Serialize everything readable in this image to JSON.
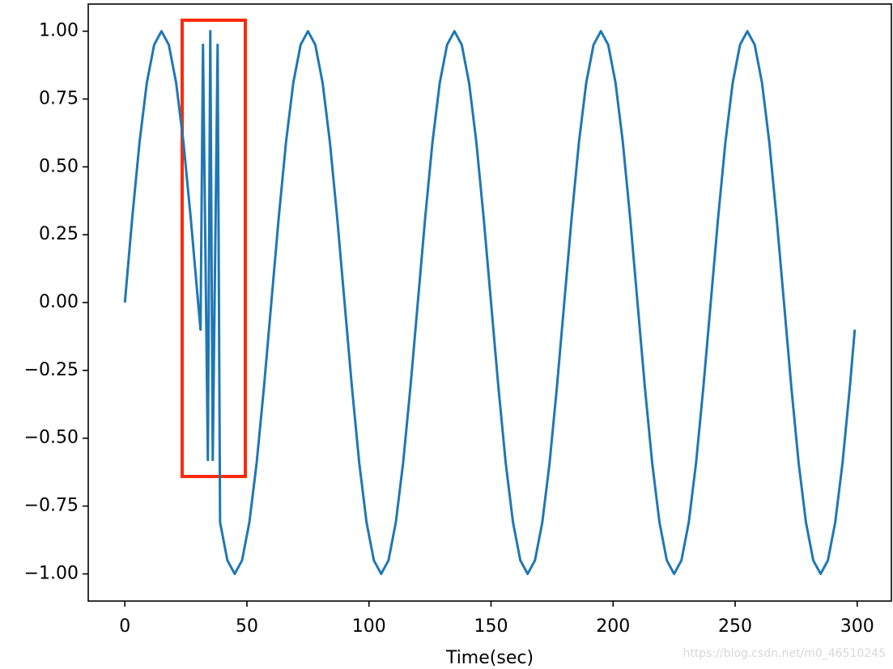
{
  "chart_data": {
    "type": "line",
    "x_label": "Time(sec)",
    "watermark": "https://blog.csdn.net/m0_46510245",
    "x": [
      0,
      3,
      6,
      9,
      12,
      15,
      18,
      21,
      24,
      27,
      30,
      31,
      32,
      34,
      35,
      36,
      38,
      39,
      42,
      45,
      48,
      51,
      54,
      57,
      60,
      63,
      66,
      69,
      72,
      75,
      78,
      81,
      84,
      87,
      90,
      93,
      96,
      99,
      102,
      105,
      108,
      111,
      114,
      117,
      120,
      123,
      126,
      129,
      132,
      135,
      138,
      141,
      144,
      147,
      150,
      153,
      156,
      159,
      162,
      165,
      168,
      171,
      174,
      177,
      180,
      183,
      186,
      189,
      192,
      195,
      198,
      201,
      204,
      207,
      210,
      213,
      216,
      219,
      222,
      225,
      228,
      231,
      234,
      237,
      240,
      243,
      246,
      249,
      252,
      255,
      258,
      261,
      264,
      267,
      270,
      273,
      276,
      279,
      282,
      285,
      288,
      291,
      294,
      297,
      299
    ],
    "series": [
      {
        "color": "#1f77b4",
        "values": [
          0,
          0.31,
          0.59,
          0.81,
          0.95,
          1,
          0.95,
          0.81,
          0.59,
          0.31,
          0,
          -0.1,
          0.95,
          -0.58,
          1,
          -0.58,
          0.95,
          -0.81,
          -0.95,
          -1,
          -0.95,
          -0.81,
          -0.59,
          -0.31,
          0,
          0.31,
          0.59,
          0.81,
          0.95,
          1,
          0.95,
          0.81,
          0.59,
          0.31,
          0,
          -0.31,
          -0.59,
          -0.81,
          -0.95,
          -1,
          -0.95,
          -0.81,
          -0.59,
          -0.31,
          0,
          0.31,
          0.59,
          0.81,
          0.95,
          1,
          0.95,
          0.81,
          0.59,
          0.31,
          0,
          -0.31,
          -0.59,
          -0.81,
          -0.95,
          -1,
          -0.95,
          -0.81,
          -0.59,
          -0.31,
          0,
          0.31,
          0.59,
          0.81,
          0.95,
          1,
          0.95,
          0.81,
          0.59,
          0.31,
          0,
          -0.31,
          -0.59,
          -0.81,
          -0.95,
          -1,
          -0.95,
          -0.81,
          -0.59,
          -0.31,
          0,
          0.31,
          0.59,
          0.81,
          0.95,
          1,
          0.95,
          0.81,
          0.59,
          0.31,
          0,
          -0.31,
          -0.59,
          -0.81,
          -0.95,
          -1,
          -0.95,
          -0.81,
          -0.59,
          -0.31,
          -0.1
        ]
      }
    ],
    "xlim": [
      -15,
      314
    ],
    "ylim": [
      -1.1,
      1.1
    ],
    "xticks": [
      0,
      50,
      100,
      150,
      200,
      250,
      300
    ],
    "yticks": [
      {
        "value": -1,
        "label": "−1.00"
      },
      {
        "value": -0.75,
        "label": "−0.75"
      },
      {
        "value": -0.5,
        "label": "−0.50"
      },
      {
        "value": -0.25,
        "label": "−0.25"
      },
      {
        "value": 0,
        "label": "0.00"
      },
      {
        "value": 0.25,
        "label": "0.25"
      },
      {
        "value": 0.5,
        "label": "0.50"
      },
      {
        "value": 0.75,
        "label": "0.75"
      },
      {
        "value": 1,
        "label": "1.00"
      }
    ]
  }
}
